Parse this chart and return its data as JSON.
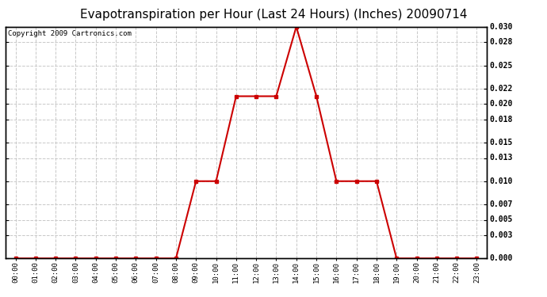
{
  "title": "Evapotranspiration per Hour (Last 24 Hours) (Inches) 20090714",
  "copyright": "Copyright 2009 Cartronics.com",
  "hours": [
    "00:00",
    "01:00",
    "02:00",
    "03:00",
    "04:00",
    "05:00",
    "06:00",
    "07:00",
    "08:00",
    "09:00",
    "10:00",
    "11:00",
    "12:00",
    "13:00",
    "14:00",
    "15:00",
    "16:00",
    "17:00",
    "18:00",
    "19:00",
    "20:00",
    "21:00",
    "22:00",
    "23:00"
  ],
  "values": [
    0.0,
    0.0,
    0.0,
    0.0,
    0.0,
    0.0,
    0.0,
    0.0,
    0.0,
    0.01,
    0.01,
    0.021,
    0.021,
    0.021,
    0.03,
    0.021,
    0.01,
    0.01,
    0.01,
    0.0,
    0.0,
    0.0,
    0.0,
    0.0
  ],
  "line_color": "#cc0000",
  "marker_color": "#cc0000",
  "background_color": "#ffffff",
  "grid_color": "#c8c8c8",
  "ylim": [
    0.0,
    0.03
  ],
  "yticks": [
    0.0,
    0.003,
    0.005,
    0.007,
    0.01,
    0.013,
    0.015,
    0.018,
    0.02,
    0.022,
    0.025,
    0.028,
    0.03
  ],
  "title_fontsize": 11,
  "copyright_fontsize": 6.5
}
